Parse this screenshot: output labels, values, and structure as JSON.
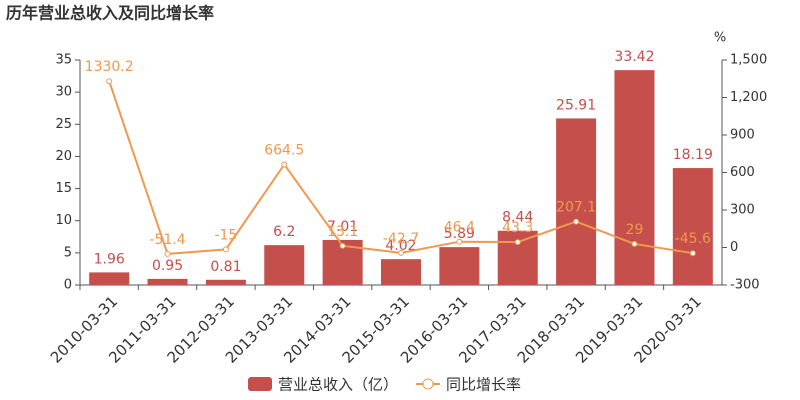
{
  "chart_data": {
    "type": "bar",
    "title": "历年营业总收入及同比增长率",
    "categories": [
      "2010-03-31",
      "2011-03-31",
      "2012-03-31",
      "2013-03-31",
      "2014-03-31",
      "2015-03-31",
      "2016-03-31",
      "2017-03-31",
      "2018-03-31",
      "2019-03-31",
      "2020-03-31"
    ],
    "series": [
      {
        "name": "营业总收入（亿）",
        "color": "#c44f4b",
        "values": [
          1.96,
          0.95,
          0.81,
          6.2,
          7.01,
          4.02,
          5.89,
          8.44,
          25.91,
          33.42,
          18.19
        ]
      },
      {
        "name": "同比增长率",
        "color": "#f0994e",
        "type": "line",
        "axis": "y2",
        "values": [
          1330.2,
          -51.4,
          -15,
          664.5,
          13.1,
          -42.7,
          46.4,
          43.3,
          207.1,
          29,
          -45.6
        ]
      }
    ],
    "ylim": [
      0,
      35
    ],
    "yticks": [
      0,
      5,
      10,
      15,
      20,
      25,
      30,
      35
    ],
    "y2label": "%",
    "y2lim": [
      -300,
      1500
    ],
    "y2ticks": [
      -300,
      0,
      300,
      600,
      900,
      {
        "value": 1200,
        "label": "1,200"
      },
      {
        "value": 1500,
        "label": "1,500"
      }
    ],
    "grid": false,
    "legend": "bottom"
  }
}
